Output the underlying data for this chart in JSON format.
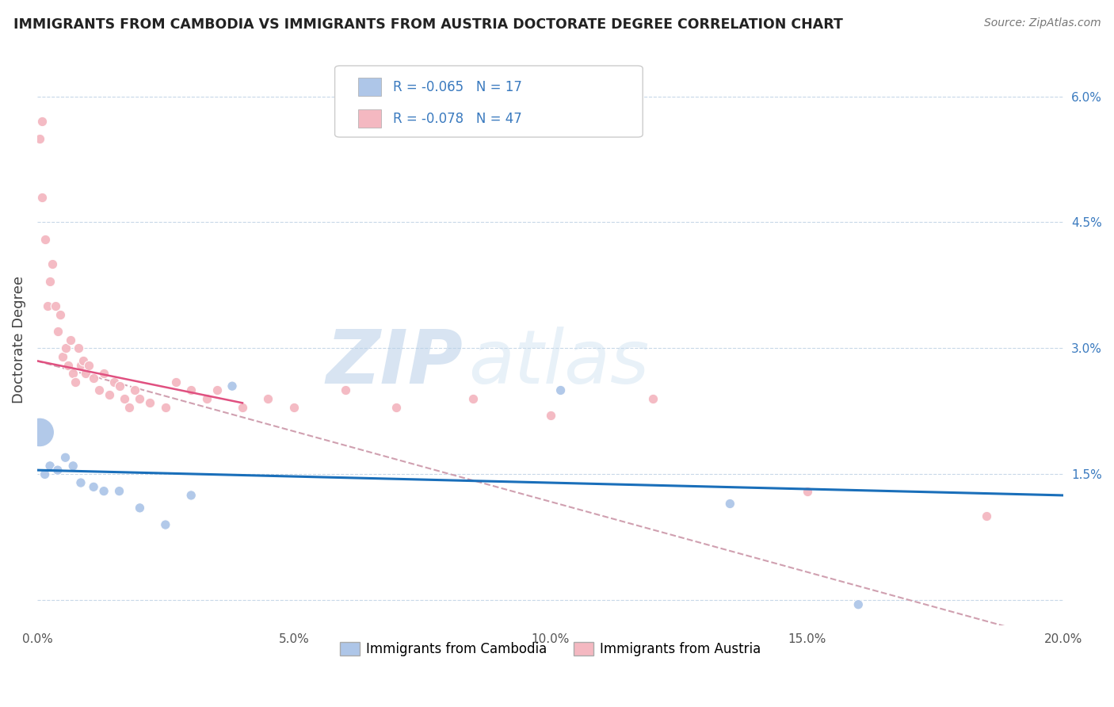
{
  "title": "IMMIGRANTS FROM CAMBODIA VS IMMIGRANTS FROM AUSTRIA DOCTORATE DEGREE CORRELATION CHART",
  "source": "Source: ZipAtlas.com",
  "ylabel": "Doctorate Degree",
  "xmin": 0.0,
  "xmax": 20.0,
  "ymin": -0.3,
  "ymax": 6.5,
  "watermark_zip": "ZIP",
  "watermark_atlas": "atlas",
  "cambodia_color": "#aec6e8",
  "austria_color": "#f4b8c1",
  "trendline_cambodia_color": "#1a6fba",
  "trendline_austria_color": "#e05080",
  "trendline_dashed_color": "#d0a0b0",
  "background_color": "#ffffff",
  "grid_color": "#c8d8e8",
  "cambodia_x": [
    0.05,
    0.15,
    0.25,
    0.4,
    0.55,
    0.7,
    0.85,
    1.1,
    1.3,
    1.6,
    2.0,
    2.5,
    3.0,
    3.8,
    10.2,
    13.5,
    16.0
  ],
  "cambodia_y": [
    2.0,
    1.5,
    1.6,
    1.55,
    1.7,
    1.6,
    1.4,
    1.35,
    1.3,
    1.3,
    1.1,
    0.9,
    1.25,
    2.55,
    2.5,
    1.15,
    -0.05
  ],
  "cambodia_sizes": [
    700,
    80,
    80,
    80,
    80,
    80,
    80,
    80,
    80,
    80,
    80,
    80,
    80,
    80,
    80,
    80,
    80
  ],
  "austria_x": [
    0.05,
    0.1,
    0.1,
    0.15,
    0.2,
    0.25,
    0.3,
    0.35,
    0.4,
    0.45,
    0.5,
    0.55,
    0.6,
    0.65,
    0.7,
    0.75,
    0.8,
    0.85,
    0.9,
    0.95,
    1.0,
    1.1,
    1.2,
    1.3,
    1.4,
    1.5,
    1.6,
    1.7,
    1.8,
    1.9,
    2.0,
    2.2,
    2.5,
    2.7,
    3.0,
    3.3,
    3.5,
    4.0,
    4.5,
    5.0,
    6.0,
    7.0,
    8.5,
    10.0,
    12.0,
    15.0,
    18.5
  ],
  "austria_y": [
    5.5,
    5.7,
    4.8,
    4.3,
    3.5,
    3.8,
    4.0,
    3.5,
    3.2,
    3.4,
    2.9,
    3.0,
    2.8,
    3.1,
    2.7,
    2.6,
    3.0,
    2.8,
    2.85,
    2.7,
    2.8,
    2.65,
    2.5,
    2.7,
    2.45,
    2.6,
    2.55,
    2.4,
    2.3,
    2.5,
    2.4,
    2.35,
    2.3,
    2.6,
    2.5,
    2.4,
    2.5,
    2.3,
    2.4,
    2.3,
    2.5,
    2.3,
    2.4,
    2.2,
    2.4,
    1.3,
    1.0
  ],
  "dot_size_default": 80,
  "dot_edge_width": 0.8,
  "legend_label_cambodia": "Immigrants from Cambodia",
  "legend_label_austria": "Immigrants from Austria",
  "ytick_vals": [
    0.0,
    1.5,
    3.0,
    4.5,
    6.0
  ],
  "ytick_labels": [
    "",
    "1.5%",
    "3.0%",
    "4.5%",
    "6.0%"
  ],
  "xtick_vals": [
    0,
    5,
    10,
    15,
    20
  ],
  "xtick_labels": [
    "0.0%",
    "5.0%",
    "10.0%",
    "15.0%",
    "20.0%"
  ]
}
